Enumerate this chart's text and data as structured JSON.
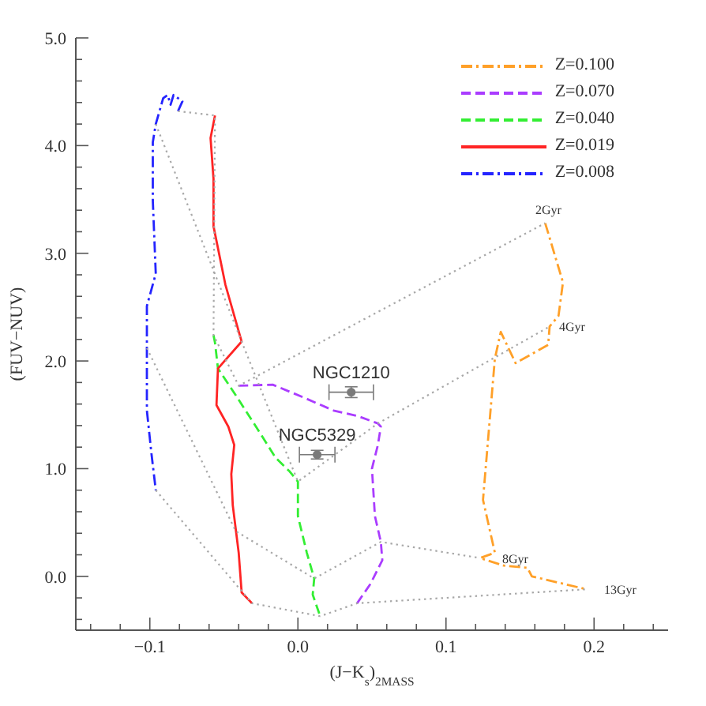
{
  "chart_data": {
    "type": "line",
    "xlabel": "(J−K$_{s}$)$_{2MASS}$",
    "ylabel": "(FUV−NUV)",
    "xlim": [
      -0.15,
      0.25
    ],
    "ylim": [
      -0.5,
      5.0
    ],
    "xticks": [
      {
        "value": -0.14,
        "label": null
      },
      {
        "value": -0.12,
        "label": null
      },
      {
        "value": -0.1,
        "label": "−0.1"
      },
      {
        "value": -0.08,
        "label": null
      },
      {
        "value": -0.06,
        "label": null
      },
      {
        "value": -0.04,
        "label": null
      },
      {
        "value": -0.02,
        "label": null
      },
      {
        "value": 0,
        "label": "0.0"
      },
      {
        "value": 0.02,
        "label": null
      },
      {
        "value": 0.04,
        "label": null
      },
      {
        "value": 0.06,
        "label": null
      },
      {
        "value": 0.08,
        "label": null
      },
      0.1,
      {
        "value": 0.12,
        "label": null
      },
      {
        "value": 0.14,
        "label": null
      },
      {
        "value": 0.16,
        "label": null
      },
      {
        "value": 0.18,
        "label": null
      },
      0.2,
      {
        "value": 0.22,
        "label": null
      },
      {
        "value": 0.24,
        "label": null
      }
    ],
    "yticks": [
      {
        "value": -0.4,
        "label": null
      },
      {
        "value": -0.2,
        "label": null
      },
      {
        "value": 0,
        "label": "0.0"
      },
      {
        "value": 0.2,
        "label": null
      },
      {
        "value": 0.4,
        "label": null
      },
      {
        "value": 0.6,
        "label": null
      },
      {
        "value": 0.8,
        "label": null
      },
      {
        "value": 1,
        "label": "1.0"
      },
      {
        "value": 1.2,
        "label": null
      },
      {
        "value": 1.4,
        "label": null
      },
      {
        "value": 1.6,
        "label": null
      },
      {
        "value": 1.8,
        "label": null
      },
      {
        "value": 2,
        "label": "2.0"
      },
      {
        "value": 2.2,
        "label": null
      },
      {
        "value": 2.4,
        "label": null
      },
      {
        "value": 2.6,
        "label": null
      },
      {
        "value": 2.8,
        "label": null
      },
      {
        "value": 3,
        "label": "3.0"
      },
      {
        "value": 3.2,
        "label": null
      },
      {
        "value": 3.4,
        "label": null
      },
      {
        "value": 3.6,
        "label": null
      },
      {
        "value": 3.8,
        "label": null
      },
      {
        "value": 4,
        "label": "4.0"
      },
      {
        "value": 4.2,
        "label": null
      },
      {
        "value": 4.4,
        "label": null
      },
      {
        "value": 4.6,
        "label": null
      },
      {
        "value": 4.8,
        "label": null
      },
      {
        "value": 5,
        "label": "5.0"
      }
    ],
    "legend": "top right",
    "series": [
      {
        "name": "Z=0.100",
        "color": "#ffa028",
        "line_style": "dashdot",
        "x": [
          0.167,
          0.179,
          0.176,
          0.17,
          0.169,
          0.147,
          0.137,
          0.133,
          0.125,
          0.133,
          0.123,
          0.139,
          0.155,
          0.158,
          0.195
        ],
        "values": [
          3.28,
          2.73,
          2.42,
          2.32,
          2.15,
          1.98,
          2.27,
          2.02,
          0.71,
          0.22,
          0.17,
          0.1,
          0.08,
          0.0,
          -0.12
        ]
      },
      {
        "name": "Z=0.070",
        "color": "#aa3cff",
        "line_style": "dashed",
        "x": [
          -0.04,
          -0.017,
          0.004,
          0.024,
          0.04,
          0.054,
          0.056,
          0.054,
          0.05,
          0.052,
          0.056,
          0.057,
          0.049,
          0.04
        ],
        "values": [
          1.77,
          1.78,
          1.66,
          1.54,
          1.49,
          1.42,
          1.39,
          1.22,
          1.0,
          0.56,
          0.32,
          0.15,
          -0.07,
          -0.25
        ]
      },
      {
        "name": "Z=0.040",
        "color": "#33ee33",
        "line_style": "dashed",
        "x": [
          -0.057,
          -0.056,
          -0.054,
          -0.04,
          -0.026,
          -0.015,
          -0.006,
          0.0,
          0.0,
          0.006,
          0.011,
          0.01,
          0.015
        ],
        "values": [
          2.24,
          2.17,
          1.93,
          1.64,
          1.34,
          1.1,
          0.98,
          0.88,
          0.56,
          0.22,
          -0.02,
          -0.17,
          -0.37
        ]
      },
      {
        "name": "Z=0.019",
        "color": "#ff2424",
        "line_style": "solid",
        "x": [
          -0.056,
          -0.059,
          -0.057,
          -0.057,
          -0.049,
          -0.038,
          -0.054,
          -0.055,
          -0.047,
          -0.043,
          -0.045,
          -0.044,
          -0.04,
          -0.038,
          -0.031
        ],
        "values": [
          4.28,
          4.07,
          3.69,
          3.25,
          2.71,
          2.18,
          1.93,
          1.59,
          1.39,
          1.22,
          0.95,
          0.66,
          0.22,
          -0.15,
          -0.25
        ]
      },
      {
        "name": "Z=0.008",
        "color": "#2424ff",
        "line_style": "dashdot",
        "x": [
          -0.081,
          -0.078,
          -0.084,
          -0.086,
          -0.088,
          -0.091,
          -0.096,
          -0.098,
          -0.098,
          -0.096,
          -0.102,
          -0.102,
          -0.102,
          -0.099,
          -0.096
        ],
        "values": [
          4.32,
          4.41,
          4.47,
          4.38,
          4.47,
          4.44,
          4.2,
          4.03,
          3.49,
          2.81,
          2.51,
          2.12,
          1.54,
          1.15,
          0.8
        ]
      },
      {
        "color": "#a8a8a8",
        "line_style": "dotted",
        "x": [
          -0.081,
          -0.056,
          -0.057,
          -0.04,
          0.167
        ],
        "values": [
          4.32,
          4.28,
          2.24,
          1.77,
          3.28
        ]
      },
      {
        "color": "#a8a8a8",
        "line_style": "dotted",
        "x": [
          -0.096,
          -0.038,
          0.0,
          0.054,
          0.17
        ],
        "values": [
          4.2,
          2.18,
          0.88,
          1.42,
          2.32
        ]
      },
      {
        "color": "#a8a8a8",
        "line_style": "dotted",
        "x": [
          -0.102,
          -0.042,
          0.011,
          0.056,
          0.123
        ],
        "values": [
          2.12,
          0.42,
          -0.02,
          0.32,
          0.17
        ]
      },
      {
        "color": "#a8a8a8",
        "line_style": "dotted",
        "x": [
          -0.096,
          -0.031,
          0.015,
          0.04,
          0.195
        ],
        "values": [
          0.8,
          -0.25,
          -0.37,
          -0.25,
          -0.12
        ]
      },
      {
        "name": "NGC1210",
        "type": "scatter",
        "color": "#7a7a7a",
        "marker": "circle",
        "x": [
          0.036
        ],
        "values": [
          1.71
        ],
        "errors": [
          0.05
        ],
        "xerrors": [
          0.015
        ]
      },
      {
        "name": "NGC5329",
        "type": "scatter",
        "color": "#7a7a7a",
        "marker": "circle",
        "x": [
          0.013
        ],
        "values": [
          1.13
        ],
        "errors": [
          0.04
        ],
        "xerrors": [
          0.012
        ]
      }
    ],
    "annotations": [
      {
        "text": "2Gyr",
        "x": 0.167,
        "y": 3.28
      },
      {
        "text": "4Gyr",
        "x": 0.17,
        "y": 2.32
      },
      {
        "text": "8Gyr",
        "x": 0.123,
        "y": 0.17
      },
      {
        "text": "13Gyr",
        "x": 0.195,
        "y": -0.12
      }
    ]
  }
}
